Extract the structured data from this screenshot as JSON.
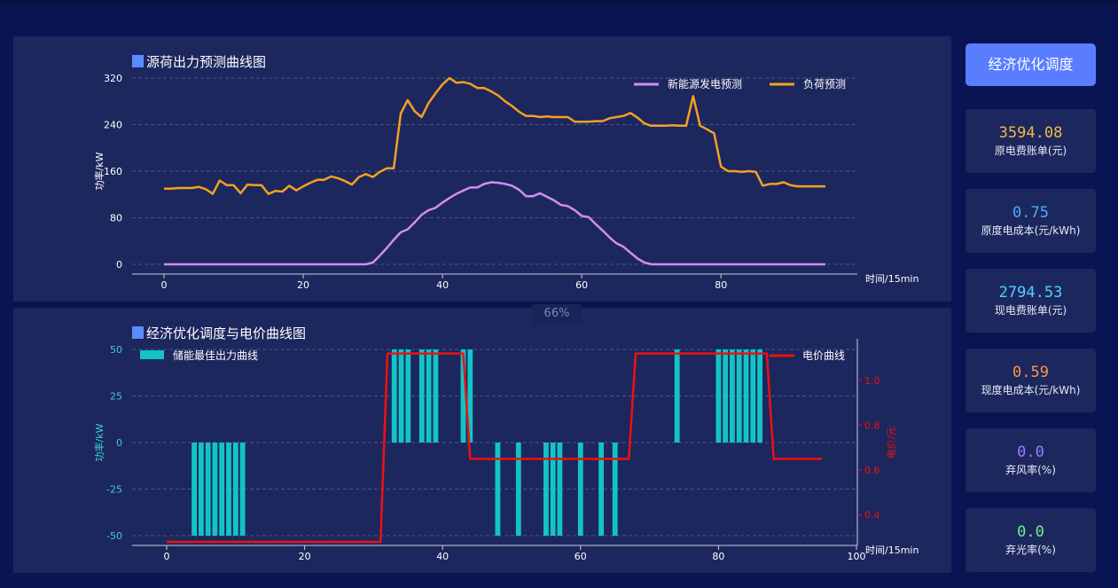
{
  "dashboard": {
    "zoom_label": "66%",
    "optimize_button": "经济优化调度",
    "stats": [
      {
        "value": "3594.08",
        "label": "原电费账单(元)",
        "color": "#f5b942"
      },
      {
        "value": "0.75",
        "label": "原度电成本(元/kWh)",
        "color": "#4fa8ff"
      },
      {
        "value": "2794.53",
        "label": "现电费账单(元)",
        "color": "#4fd2ff"
      },
      {
        "value": "0.59",
        "label": "现度电成本(元/kWh)",
        "color": "#ff9640"
      },
      {
        "value": "0.0",
        "label": "弃风率(%)",
        "color": "#9d7bff"
      },
      {
        "value": "0.0",
        "label": "弃光率(%)",
        "color": "#6cf08a"
      }
    ]
  },
  "chart_data": [
    {
      "type": "line",
      "title": "源荷出力预测曲线图",
      "xlabel": "时间/15min",
      "ylabel": "功率/kW",
      "xlim": [
        0,
        95
      ],
      "ylim": [
        0,
        320
      ],
      "xticks": [
        0,
        20,
        40,
        60,
        80
      ],
      "yticks": [
        0,
        80,
        160,
        240,
        320
      ],
      "grid": true,
      "legend_position": "top-right",
      "series": [
        {
          "name": "新能源发电预测",
          "color": "#d28cf0",
          "values": [
            0,
            0,
            0,
            0,
            0,
            0,
            0,
            0,
            0,
            0,
            0,
            0,
            0,
            0,
            0,
            0,
            0,
            0,
            0,
            0,
            0,
            0,
            0,
            0,
            0,
            0,
            0,
            0,
            0,
            0,
            3,
            15,
            28,
            42,
            55,
            60,
            72,
            85,
            93,
            97,
            106,
            114,
            121,
            127,
            132,
            132,
            138,
            141,
            140,
            138,
            135,
            128,
            117,
            117,
            122,
            116,
            110,
            102,
            100,
            93,
            83,
            81,
            69,
            58,
            46,
            36,
            30,
            20,
            10,
            3,
            0,
            0,
            0,
            0,
            0,
            0,
            0,
            0,
            0,
            0,
            0,
            0,
            0,
            0,
            0,
            0,
            0,
            0,
            0,
            0,
            0,
            0,
            0,
            0,
            0,
            0
          ]
        },
        {
          "name": "负荷预测",
          "color": "#f5a020",
          "values": [
            130,
            130,
            131,
            131,
            131,
            133,
            129,
            121,
            144,
            136,
            136,
            122,
            137,
            136,
            136,
            121,
            126,
            125,
            135,
            127,
            134,
            140,
            145,
            145,
            151,
            148,
            143,
            137,
            150,
            155,
            150,
            159,
            165,
            165,
            259,
            282,
            263,
            253,
            277,
            294,
            309,
            320,
            312,
            313,
            310,
            303,
            303,
            297,
            290,
            280,
            272,
            262,
            255,
            255,
            253,
            254,
            253,
            253,
            253,
            245,
            245,
            245,
            246,
            246,
            251,
            253,
            255,
            260,
            252,
            242,
            238,
            238,
            238,
            239,
            238,
            238,
            289,
            238,
            232,
            225,
            168,
            160,
            160,
            159,
            160,
            159,
            135,
            138,
            138,
            141,
            136,
            134,
            134,
            134,
            134,
            134
          ]
        }
      ]
    },
    {
      "type": "bar",
      "title": "经济优化调度与电价曲线图",
      "xlabel": "时间/15min",
      "ylabel": "功率/kW",
      "y2label": "电价/元",
      "xlim": [
        0,
        100
      ],
      "ylim": [
        -55,
        55
      ],
      "y2lim": [
        0.28,
        1.15
      ],
      "xticks": [
        0,
        20,
        40,
        60,
        80,
        100
      ],
      "yticks": [
        -50,
        -25,
        0,
        25,
        50
      ],
      "y2ticks": [
        0.4,
        0.6,
        0.8,
        1.0
      ],
      "grid": true,
      "series": [
        {
          "name": "储能最佳出力曲线",
          "color": "#12c4c6",
          "kind": "bar",
          "values": [
            0,
            0,
            0,
            0,
            -50,
            -50,
            -50,
            -50,
            -50,
            -50,
            -50,
            -50,
            0,
            0,
            0,
            0,
            0,
            0,
            0,
            0,
            0,
            0,
            0,
            0,
            0,
            0,
            0,
            0,
            0,
            0,
            0,
            0,
            0,
            50,
            50,
            50,
            0,
            50,
            50,
            50,
            0,
            0,
            0,
            50,
            50,
            0,
            0,
            0,
            -50,
            0,
            0,
            -50,
            0,
            0,
            0,
            -50,
            -50,
            -50,
            0,
            0,
            -50,
            0,
            0,
            -50,
            0,
            -50,
            0,
            0,
            0,
            0,
            0,
            0,
            0,
            0,
            50,
            0,
            0,
            0,
            0,
            0,
            50,
            50,
            50,
            50,
            50,
            50,
            50,
            0,
            0,
            0,
            0,
            0,
            0,
            0,
            0,
            0,
            0
          ]
        },
        {
          "name": "电价曲线",
          "color": "#ee1111",
          "kind": "line",
          "axis": "right",
          "points": [
            [
              0,
              0.28
            ],
            [
              31,
              0.28
            ],
            [
              32,
              1.12
            ],
            [
              43,
              1.12
            ],
            [
              44,
              0.65
            ],
            [
              67,
              0.65
            ],
            [
              68,
              1.12
            ],
            [
              87,
              1.12
            ],
            [
              88,
              0.65
            ],
            [
              95,
              0.65
            ]
          ]
        }
      ]
    }
  ]
}
